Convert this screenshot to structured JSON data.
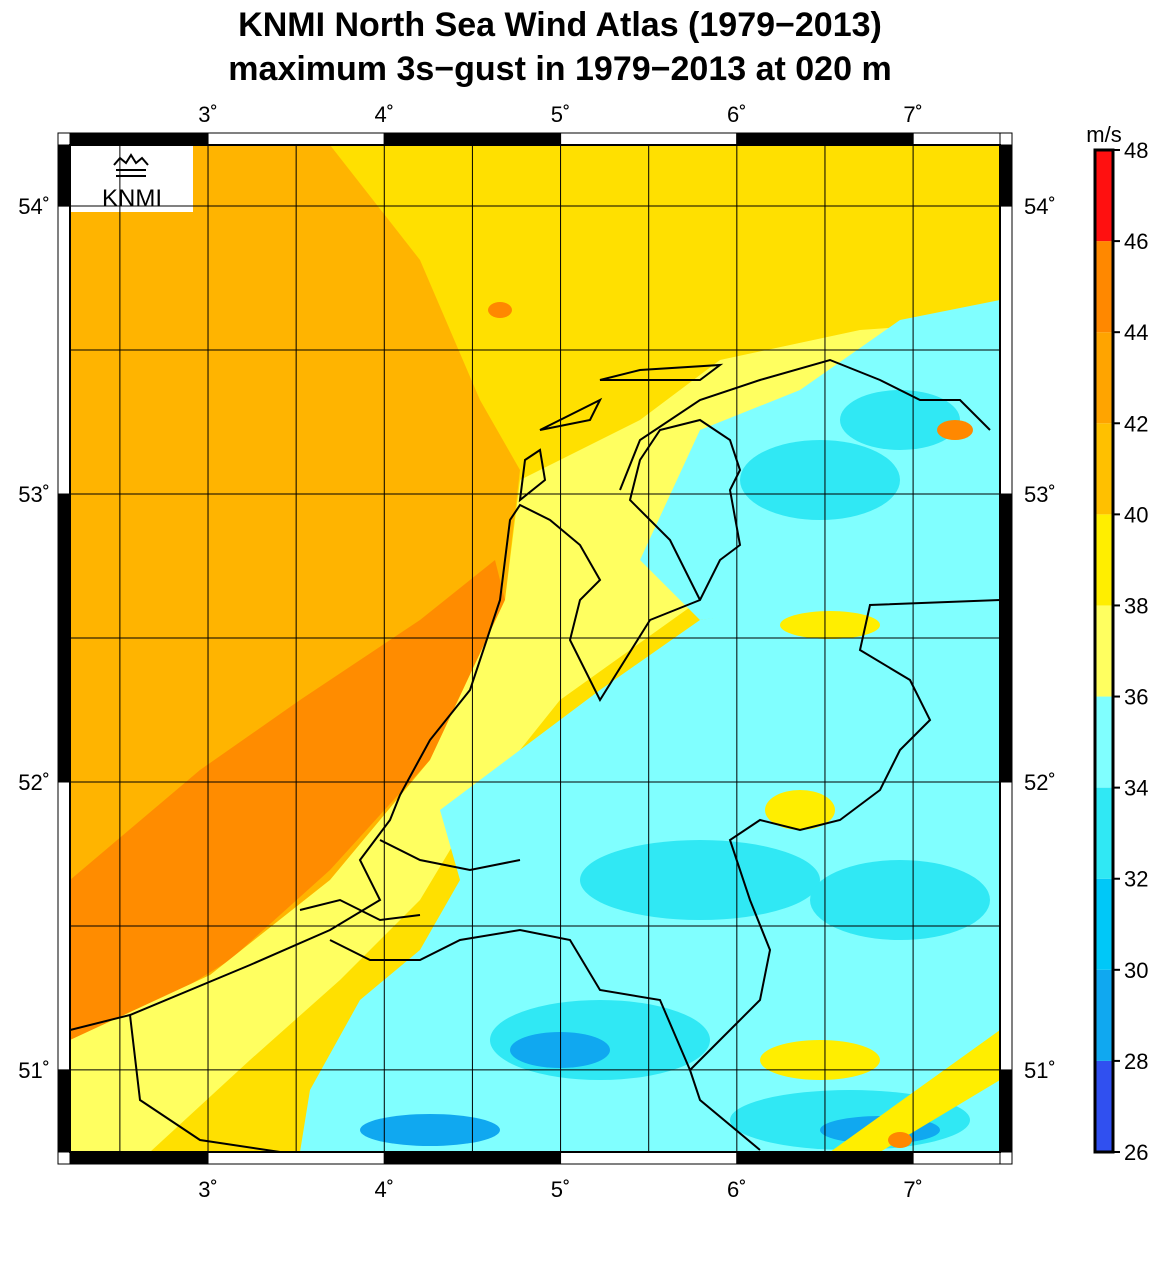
{
  "title": "KNMI North Sea Wind Atlas (1979−2013)",
  "subtitle": "maximum 3s−gust in 1979−2013 at 020 m",
  "logo": "KNMI",
  "map": {
    "lon_range": [
      2.217,
      7.493
    ],
    "lat_range": [
      50.715,
      54.212
    ],
    "lon_ticks": [
      {
        "value": 3,
        "label": "3˚"
      },
      {
        "value": 4,
        "label": "4˚"
      },
      {
        "value": 5,
        "label": "5˚"
      },
      {
        "value": 6,
        "label": "6˚"
      },
      {
        "value": 7,
        "label": "7˚"
      }
    ],
    "lat_ticks": [
      {
        "value": 51,
        "label": "51˚"
      },
      {
        "value": 52,
        "label": "52˚"
      },
      {
        "value": 53,
        "label": "53˚"
      },
      {
        "value": 54,
        "label": "54˚"
      }
    ],
    "grid_lon": [
      2.5,
      3,
      3.5,
      4,
      4.5,
      5,
      5.5,
      6,
      6.5,
      7
    ],
    "grid_lat": [
      51,
      51.5,
      52,
      52.5,
      53,
      53.5,
      54
    ]
  },
  "colorbar": {
    "unit": "m/s",
    "ticks": [
      26,
      28,
      30,
      32,
      34,
      36,
      38,
      40,
      42,
      44,
      46,
      48
    ],
    "colors": [
      "#3050f0",
      "#10a8f0",
      "#00c8f8",
      "#30e8f4",
      "#80ffff",
      "#ffff60",
      "#ffee00",
      "#ffc000",
      "#ffa400",
      "#ff8800",
      "#ff1010"
    ]
  }
}
